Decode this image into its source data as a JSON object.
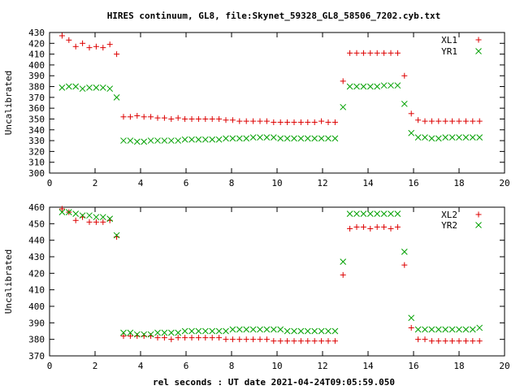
{
  "chart_data": {
    "type": "scatter",
    "title": "HIRES continuum, GL8, file:Skynet_59328_GL8_58506_7202.cyb.txt",
    "xlabel": "rel seconds : UT date 2021-04-24T09:05:59.050",
    "grid": false,
    "legend_position": "top-right",
    "colors": {
      "xl": "#dd0000",
      "yr": "#00a000"
    },
    "panels": [
      {
        "ylabel": "Uncalibrated",
        "xlim": [
          0,
          20
        ],
        "ylim": [
          300,
          430
        ],
        "xticks": [
          "0",
          "2",
          "4",
          "6",
          "8",
          "10",
          "12",
          "14",
          "16",
          "18",
          "20"
        ],
        "yticks": [
          "300",
          "310",
          "320",
          "330",
          "340",
          "350",
          "360",
          "370",
          "380",
          "390",
          "400",
          "410",
          "420",
          "430"
        ],
        "series": [
          {
            "name": "XL1",
            "marker": "plus",
            "x": [
              0.55,
              0.85,
              1.15,
              1.45,
              1.75,
              2.05,
              2.35,
              2.65,
              2.95,
              3.25,
              3.55,
              3.85,
              4.15,
              4.45,
              4.75,
              5.05,
              5.35,
              5.65,
              5.95,
              6.25,
              6.55,
              6.85,
              7.15,
              7.45,
              7.75,
              8.05,
              8.35,
              8.65,
              8.95,
              9.25,
              9.55,
              9.85,
              10.15,
              10.45,
              10.75,
              11.05,
              11.35,
              11.65,
              11.95,
              12.25,
              12.55,
              12.9,
              13.2,
              13.5,
              13.8,
              14.1,
              14.4,
              14.7,
              15.0,
              15.3,
              15.6,
              15.9,
              16.2,
              16.5,
              16.8,
              17.1,
              17.4,
              17.7,
              18.0,
              18.3,
              18.6,
              18.9
            ],
            "y": [
              427,
              423,
              417,
              420,
              416,
              417,
              416,
              419,
              410,
              352,
              352,
              353,
              352,
              352,
              351,
              351,
              350,
              351,
              350,
              350,
              350,
              350,
              350,
              350,
              349,
              349,
              348,
              348,
              348,
              348,
              348,
              347,
              347,
              347,
              347,
              347,
              347,
              347,
              348,
              347,
              347,
              385,
              411,
              411,
              411,
              411,
              411,
              411,
              411,
              411,
              390,
              355,
              349,
              348,
              348,
              348,
              348,
              348,
              348,
              348,
              348,
              348
            ]
          },
          {
            "name": "YR1",
            "marker": "cross",
            "x": [
              0.55,
              0.85,
              1.15,
              1.45,
              1.75,
              2.05,
              2.35,
              2.65,
              2.95,
              3.25,
              3.55,
              3.85,
              4.15,
              4.45,
              4.75,
              5.05,
              5.35,
              5.65,
              5.95,
              6.25,
              6.55,
              6.85,
              7.15,
              7.45,
              7.75,
              8.05,
              8.35,
              8.65,
              8.95,
              9.25,
              9.55,
              9.85,
              10.15,
              10.45,
              10.75,
              11.05,
              11.35,
              11.65,
              11.95,
              12.25,
              12.55,
              12.9,
              13.2,
              13.5,
              13.8,
              14.1,
              14.4,
              14.7,
              15.0,
              15.3,
              15.6,
              15.9,
              16.2,
              16.5,
              16.8,
              17.1,
              17.4,
              17.7,
              18.0,
              18.3,
              18.6,
              18.9
            ],
            "y": [
              379,
              380,
              380,
              378,
              379,
              379,
              379,
              378,
              370,
              330,
              330,
              329,
              329,
              330,
              330,
              330,
              330,
              330,
              331,
              331,
              331,
              331,
              331,
              331,
              332,
              332,
              332,
              332,
              333,
              333,
              333,
              333,
              332,
              332,
              332,
              332,
              332,
              332,
              332,
              332,
              332,
              361,
              380,
              380,
              380,
              380,
              380,
              381,
              381,
              381,
              364,
              337,
              333,
              333,
              332,
              332,
              333,
              333,
              333,
              333,
              333,
              333
            ]
          }
        ]
      },
      {
        "ylabel": "Uncalibrated",
        "xlim": [
          0,
          20
        ],
        "ylim": [
          370,
          460
        ],
        "xticks": [
          "0",
          "2",
          "4",
          "6",
          "8",
          "10",
          "12",
          "14",
          "16",
          "18",
          "20"
        ],
        "yticks": [
          "370",
          "380",
          "390",
          "400",
          "410",
          "420",
          "430",
          "440",
          "450",
          "460"
        ],
        "series": [
          {
            "name": "XL2",
            "marker": "plus",
            "x": [
              0.55,
              0.85,
              1.15,
              1.45,
              1.75,
              2.05,
              2.35,
              2.65,
              2.95,
              3.25,
              3.55,
              3.85,
              4.15,
              4.45,
              4.75,
              5.05,
              5.35,
              5.65,
              5.95,
              6.25,
              6.55,
              6.85,
              7.15,
              7.45,
              7.75,
              8.05,
              8.35,
              8.65,
              8.95,
              9.25,
              9.55,
              9.85,
              10.15,
              10.45,
              10.75,
              11.05,
              11.35,
              11.65,
              11.95,
              12.25,
              12.55,
              12.9,
              13.2,
              13.5,
              13.8,
              14.1,
              14.4,
              14.7,
              15.0,
              15.3,
              15.6,
              15.9,
              16.2,
              16.5,
              16.8,
              17.1,
              17.4,
              17.7,
              18.0,
              18.3,
              18.6,
              18.9
            ],
            "y": [
              459,
              457,
              452,
              454,
              451,
              451,
              451,
              452,
              442,
              382,
              382,
              382,
              382,
              382,
              381,
              381,
              380,
              381,
              381,
              381,
              381,
              381,
              381,
              381,
              380,
              380,
              380,
              380,
              380,
              380,
              380,
              379,
              379,
              379,
              379,
              379,
              379,
              379,
              379,
              379,
              379,
              419,
              447,
              448,
              448,
              447,
              448,
              448,
              447,
              448,
              425,
              387,
              380,
              380,
              379,
              379,
              379,
              379,
              379,
              379,
              379,
              379
            ]
          },
          {
            "name": "YR2",
            "marker": "cross",
            "x": [
              0.55,
              0.85,
              1.15,
              1.45,
              1.75,
              2.05,
              2.35,
              2.65,
              2.95,
              3.25,
              3.55,
              3.85,
              4.15,
              4.45,
              4.75,
              5.05,
              5.35,
              5.65,
              5.95,
              6.25,
              6.55,
              6.85,
              7.15,
              7.45,
              7.75,
              8.05,
              8.35,
              8.65,
              8.95,
              9.25,
              9.55,
              9.85,
              10.15,
              10.45,
              10.75,
              11.05,
              11.35,
              11.65,
              11.95,
              12.25,
              12.55,
              12.9,
              13.2,
              13.5,
              13.8,
              14.1,
              14.4,
              14.7,
              15.0,
              15.3,
              15.6,
              15.9,
              16.2,
              16.5,
              16.8,
              17.1,
              17.4,
              17.7,
              18.0,
              18.3,
              18.6,
              18.9
            ],
            "y": [
              457,
              457,
              456,
              455,
              455,
              454,
              454,
              453,
              443,
              384,
              384,
              383,
              383,
              383,
              384,
              384,
              384,
              384,
              385,
              385,
              385,
              385,
              385,
              385,
              385,
              386,
              386,
              386,
              386,
              386,
              386,
              386,
              386,
              385,
              385,
              385,
              385,
              385,
              385,
              385,
              385,
              427,
              456,
              456,
              456,
              456,
              456,
              456,
              456,
              456,
              433,
              393,
              386,
              386,
              386,
              386,
              386,
              386,
              386,
              386,
              386,
              387
            ]
          }
        ]
      }
    ]
  }
}
